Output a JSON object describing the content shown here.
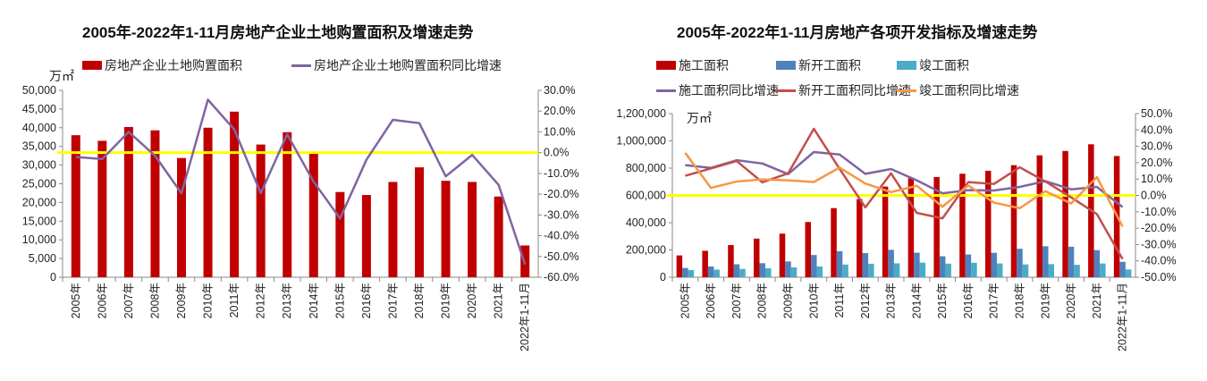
{
  "chart_data": [
    {
      "type": "bar",
      "title": "2005年-2022年1-11月房地产企业土地购置面积及增速走势",
      "unit": "万㎡",
      "categories": [
        "2005年",
        "2006年",
        "2007年",
        "2008年",
        "2009年",
        "2010年",
        "2011年",
        "2012年",
        "2013年",
        "2014年",
        "2015年",
        "2016年",
        "2017年",
        "2018年",
        "2019年",
        "2020年",
        "2021年",
        "2022年1-11月"
      ],
      "series": [
        {
          "name": "房地产企业土地购置面积",
          "kind": "bar",
          "axis": "left",
          "color": "#c00000",
          "values": [
            38000,
            36500,
            40200,
            39300,
            31900,
            40000,
            44300,
            35500,
            38800,
            33400,
            22800,
            22000,
            25500,
            29400,
            25800,
            25500,
            21600,
            8500
          ]
        },
        {
          "name": "房地产企业土地购置面积同比增速",
          "kind": "line",
          "axis": "right",
          "color": "#8064a2",
          "values": [
            -2.1,
            -3.1,
            10.0,
            -1.5,
            -19.6,
            25.5,
            11.1,
            -19.5,
            8.8,
            -14.0,
            -31.7,
            -3.4,
            15.8,
            14.2,
            -11.4,
            -1.1,
            -15.5,
            -53.8
          ]
        }
      ],
      "ylim": [
        0,
        50000
      ],
      "yticks": [
        "0",
        "5,000",
        "10,000",
        "15,000",
        "20,000",
        "25,000",
        "30,000",
        "35,000",
        "40,000",
        "45,000",
        "50,000"
      ],
      "y2lim": [
        -60,
        30
      ],
      "y2ticks": [
        "-60.0%",
        "-50.0%",
        "-40.0%",
        "-30.0%",
        "-20.0%",
        "-10.0%",
        "0.0%",
        "10.0%",
        "20.0%",
        "30.0%"
      ],
      "reference_line": {
        "value": 0,
        "axis": "right",
        "color": "#ffff00"
      },
      "legend": "top"
    },
    {
      "type": "bar",
      "title": "2005年-2022年1-11月房地产各项开发指标及增速走势",
      "unit": "万㎡",
      "categories": [
        "2005年",
        "2006年",
        "2007年",
        "2008年",
        "2009年",
        "2010年",
        "2011年",
        "2012年",
        "2013年",
        "2014年",
        "2015年",
        "2016年",
        "2017年",
        "2018年",
        "2019年",
        "2020年",
        "2021年",
        "2022年1-11月"
      ],
      "series": [
        {
          "name": "施工面积",
          "kind": "bar",
          "axis": "left",
          "color": "#c00000",
          "values": [
            160000,
            194000,
            236000,
            283000,
            320000,
            405000,
            507000,
            573000,
            665000,
            726000,
            735000,
            759000,
            781000,
            822000,
            894000,
            926000,
            975000,
            889000
          ]
        },
        {
          "name": "新开工面积",
          "kind": "bar",
          "axis": "left",
          "color": "#4f81bd",
          "values": [
            68000,
            79000,
            95000,
            103000,
            116000,
            163000,
            191000,
            177000,
            201000,
            180000,
            154000,
            167000,
            179000,
            209000,
            227000,
            224000,
            199000,
            113000
          ]
        },
        {
          "name": "竣工面积",
          "kind": "bar",
          "axis": "left",
          "color": "#4bacc6",
          "values": [
            53000,
            56000,
            61000,
            66000,
            72000,
            79000,
            93000,
            99000,
            102000,
            107000,
            100000,
            106000,
            101000,
            94000,
            96000,
            91000,
            101000,
            57000
          ]
        },
        {
          "name": "施工面积同比增速",
          "kind": "line",
          "axis": "right",
          "color": "#8064a2",
          "values": [
            18.5,
            16.8,
            21.5,
            19.5,
            13.0,
            26.5,
            25.0,
            13.2,
            16.1,
            9.2,
            1.3,
            3.2,
            3.0,
            5.2,
            8.7,
            3.7,
            5.2,
            -7.1
          ]
        },
        {
          "name": "新开工面积同比增速",
          "kind": "line",
          "axis": "right",
          "color": "#c0504d",
          "values": [
            12.0,
            16.5,
            21.0,
            8.0,
            13.5,
            40.7,
            16.2,
            -7.3,
            13.5,
            -10.7,
            -14.0,
            8.1,
            7.0,
            17.2,
            8.5,
            -1.2,
            -11.4,
            -38.9
          ]
        },
        {
          "name": "竣工面积同比增速",
          "kind": "line",
          "axis": "right",
          "color": "#f79646",
          "values": [
            26.0,
            4.6,
            8.5,
            9.8,
            9.2,
            8.2,
            17.0,
            7.3,
            2.0,
            5.9,
            -6.9,
            6.1,
            -4.4,
            -7.8,
            2.6,
            -4.9,
            11.2,
            -19.0
          ]
        }
      ],
      "ylim": [
        0,
        1200000
      ],
      "yticks": [
        "0",
        "200,000",
        "400,000",
        "600,000",
        "800,000",
        "1,000,000",
        "1,200,000"
      ],
      "y2lim": [
        -50,
        50
      ],
      "y2ticks": [
        "-50.0%",
        "-40.0%",
        "-30.0%",
        "-20.0%",
        "-10.0%",
        "0.0%",
        "10.0%",
        "20.0%",
        "30.0%",
        "40.0%",
        "50.0%"
      ],
      "reference_line": {
        "value": 0,
        "axis": "right",
        "color": "#ffff00"
      },
      "legend": "top"
    }
  ]
}
